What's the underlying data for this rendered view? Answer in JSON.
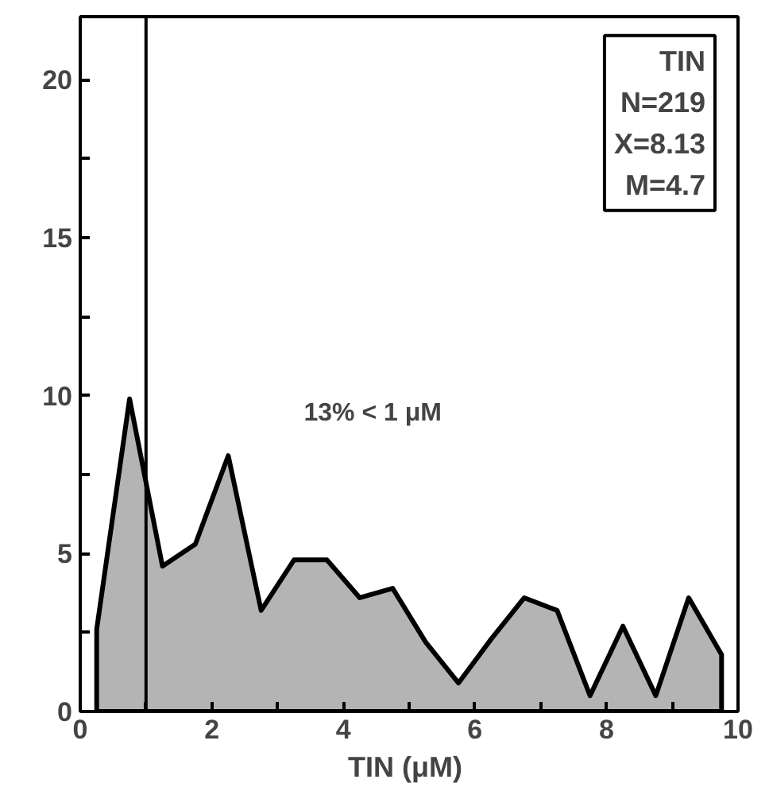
{
  "chart_data": {
    "type": "area",
    "xlabel": "TIN  (μM)",
    "x": [
      0.25,
      0.75,
      1.25,
      1.75,
      2.25,
      2.75,
      3.25,
      3.75,
      4.25,
      4.75,
      5.25,
      5.75,
      6.25,
      6.75,
      7.25,
      7.75,
      8.25,
      8.75,
      9.25,
      9.75
    ],
    "series": [
      {
        "color": "#b4b4b4",
        "values": [
          2.6,
          9.9,
          4.6,
          5.3,
          8.1,
          3.2,
          4.8,
          4.8,
          3.6,
          3.9,
          2.2,
          0.9,
          2.3,
          3.6,
          3.2,
          0.5,
          2.7,
          0.5,
          3.6,
          1.8
        ]
      }
    ],
    "xlim": [
      0,
      10
    ],
    "ylim": [
      0,
      22
    ],
    "xticks": [
      0,
      {
        "value": 1,
        "label": null
      },
      2,
      {
        "value": 3,
        "label": null
      },
      4,
      {
        "value": 5,
        "label": null
      },
      6,
      {
        "value": 7,
        "label": null
      },
      8,
      {
        "value": 9,
        "label": null
      },
      10
    ],
    "yticks": [
      0,
      {
        "value": 2.5,
        "label": null
      },
      5,
      {
        "value": 7.5,
        "label": null
      },
      10,
      {
        "value": 12.5,
        "label": null
      },
      15,
      {
        "value": 17.5,
        "label": null
      },
      20
    ],
    "ref_lines": [
      {
        "axis": "x",
        "value": 1,
        "color": "#000000"
      }
    ],
    "annotations": [
      "TIN",
      "N=219",
      "X=8.13",
      "M=4.7",
      "13% < 1 μM"
    ],
    "grid": false
  }
}
